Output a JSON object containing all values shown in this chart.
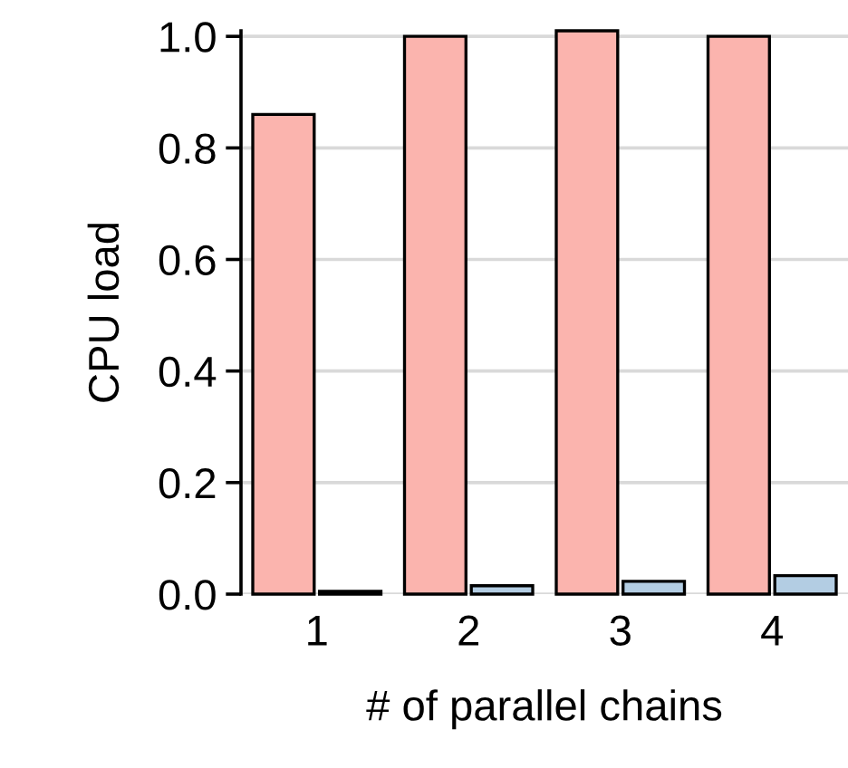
{
  "chart_data": {
    "type": "bar",
    "xlabel": "# of parallel chains",
    "ylabel": "CPU load",
    "categories": [
      "1",
      "2",
      "3",
      "4"
    ],
    "series": [
      {
        "color": "#fbb4ae",
        "values": [
          0.86,
          1.0,
          1.01,
          1.0
        ]
      },
      {
        "color": "#b3cde3",
        "values": [
          0.005,
          0.015,
          0.023,
          0.033
        ]
      }
    ],
    "ylim": [
      0,
      1.01
    ],
    "yticks": [
      {
        "value": 0,
        "label": "0.0"
      },
      {
        "value": 0.2,
        "label": "0.2"
      },
      {
        "value": 0.4,
        "label": "0.4"
      },
      {
        "value": 0.6,
        "label": "0.6"
      },
      {
        "value": 0.8,
        "label": "0.8"
      },
      {
        "value": 1.0,
        "label": "1.0"
      }
    ],
    "grid": "y",
    "legend": false
  }
}
